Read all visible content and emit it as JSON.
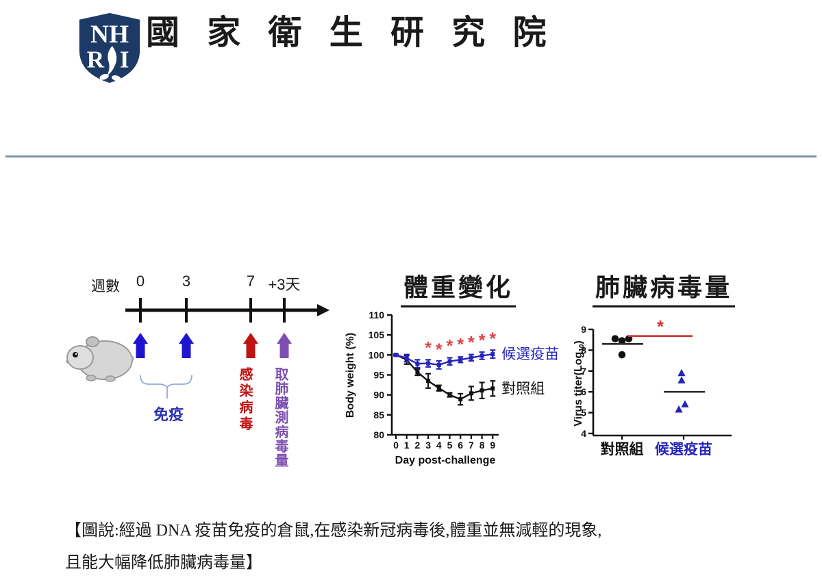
{
  "header": {
    "logo": {
      "top": "NH",
      "bottom_left": "R",
      "bottom_right": "I",
      "shield_color": "#1d3a66"
    },
    "title": "國 家 衛 生 研 究 院"
  },
  "divider_color": "#7b96ac",
  "timeline": {
    "axis_label": "週數",
    "ticks": [
      {
        "label": "0",
        "arrow_color": "#1f14cf"
      },
      {
        "label": "3",
        "arrow_color": "#1f14cf"
      },
      {
        "label": "7",
        "arrow_color": "#c11212"
      },
      {
        "label": "+3天",
        "arrow_color": "#7d4fb0"
      }
    ],
    "immunize_label": "免疫",
    "immunize_color": "#2a2fae",
    "infect_label": "感染病毒",
    "infect_color": "#c11212",
    "harvest_label": "取肺臟測病毒量",
    "harvest_color": "#7d4fb0",
    "brace_color": "#97a6e0"
  },
  "chart_data": [
    {
      "type": "line",
      "title": "體重變化",
      "xlabel": "Day post-challenge",
      "ylabel": "Body weight (%)",
      "ylim": [
        80,
        110
      ],
      "yticks": [
        80,
        85,
        90,
        95,
        100,
        105,
        110
      ],
      "x": [
        0,
        1,
        2,
        3,
        4,
        5,
        6,
        7,
        8,
        9
      ],
      "series": [
        {
          "name": "候選疫苗",
          "color": "#2424bb",
          "values": [
            100,
            99.2,
            97.8,
            97.9,
            97.5,
            98.4,
            98.8,
            99.3,
            99.8,
            100.2
          ],
          "errors": [
            0.2,
            0.9,
            1.0,
            0.9,
            1.0,
            0.9,
            0.7,
            0.8,
            0.9,
            1.0
          ]
        },
        {
          "name": "對照組",
          "color": "#111111",
          "values": [
            100,
            98.8,
            95.7,
            93.5,
            91.7,
            90.0,
            88.9,
            90.4,
            91.1,
            91.6
          ],
          "errors": [
            0.2,
            1.1,
            0.8,
            1.8,
            0.7,
            0.5,
            1.4,
            1.7,
            2.0,
            1.9
          ]
        }
      ],
      "significance": {
        "symbol": "*",
        "color": "#e04444",
        "days": [
          3,
          4,
          5,
          6,
          7,
          8,
          9
        ]
      }
    },
    {
      "type": "scatter",
      "title": "肺臟病毒量",
      "ylabel": "Virus titer(Log10)",
      "ylabel_parts": {
        "main": "Virus titer(Log",
        "sub": "10",
        "end": ")"
      },
      "ylim": [
        4,
        9
      ],
      "yticks": [
        4,
        5,
        6,
        7,
        8,
        9
      ],
      "groups": [
        {
          "name": "對照組",
          "label_color": "#111111",
          "marker": "circle",
          "color": "#111111",
          "values": [
            8.55,
            8.45,
            8.55,
            7.78
          ],
          "mean": 8.3
        },
        {
          "name": "候選疫苗",
          "label_color": "#2424bb",
          "marker": "triangle",
          "color": "#2424bb",
          "values": [
            6.9,
            6.55,
            5.4,
            5.15
          ],
          "mean": 6.0
        }
      ],
      "significance": {
        "symbol": "*",
        "color": "#cf3333",
        "y": 8.68
      }
    }
  ],
  "caption": {
    "line1": "【圖說:經過 DNA 疫苗免疫的倉鼠,在感染新冠病毒後,體重並無減輕的現象,",
    "line2": "且能大幅降低肺臟病毒量】"
  }
}
